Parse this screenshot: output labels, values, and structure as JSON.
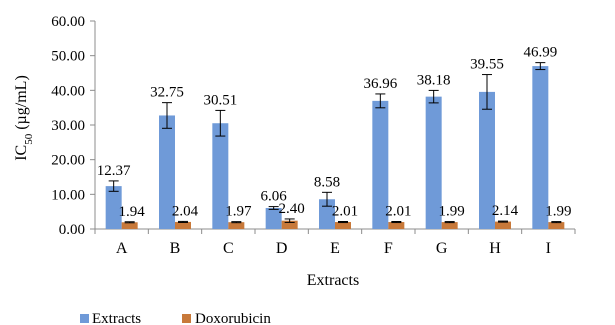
{
  "colors": {
    "extracts": "#6f9ad8",
    "doxorubicin": "#c8793a",
    "axis": "#8c8c8c",
    "error_bar": "#000000"
  },
  "chart_data": {
    "type": "bar",
    "title": "",
    "xlabel": "Extracts",
    "ylabel": "IC",
    "ylabel_sub": "50",
    "ylabel_rest": " (µg/mL)",
    "ylim": [
      0,
      60
    ],
    "yticks": [
      0,
      10,
      20,
      30,
      40,
      50,
      60
    ],
    "ytick_labels": [
      "0.00",
      "10.00",
      "20.00",
      "30.00",
      "40.00",
      "50.00",
      "60.00"
    ],
    "categories": [
      "A",
      "B",
      "C",
      "D",
      "E",
      "F",
      "G",
      "H",
      "I"
    ],
    "grid": false,
    "legend_position": "bottom-left",
    "series": [
      {
        "name": "Extracts",
        "values": [
          12.37,
          32.75,
          30.51,
          6.06,
          8.58,
          36.96,
          38.18,
          39.55,
          46.99
        ],
        "errors": [
          1.5,
          3.7,
          3.7,
          0.4,
          2.0,
          2.0,
          1.8,
          5.0,
          1.0
        ],
        "labels": [
          "12.37",
          "32.75",
          "30.51",
          "6.06",
          "8.58",
          "36.96",
          "38.18",
          "39.55",
          "46.99"
        ]
      },
      {
        "name": "Doxorubicin",
        "values": [
          1.94,
          2.04,
          1.97,
          2.4,
          2.01,
          2.01,
          1.99,
          2.14,
          1.99
        ],
        "errors": [
          0.15,
          0.15,
          0.15,
          0.5,
          0.15,
          0.15,
          0.15,
          0.15,
          0.15
        ],
        "labels": [
          "1.94",
          "2.04",
          "1.97",
          "2.40",
          "2.01",
          "2.01",
          "1.99",
          "2.14",
          "1.99"
        ]
      }
    ]
  }
}
